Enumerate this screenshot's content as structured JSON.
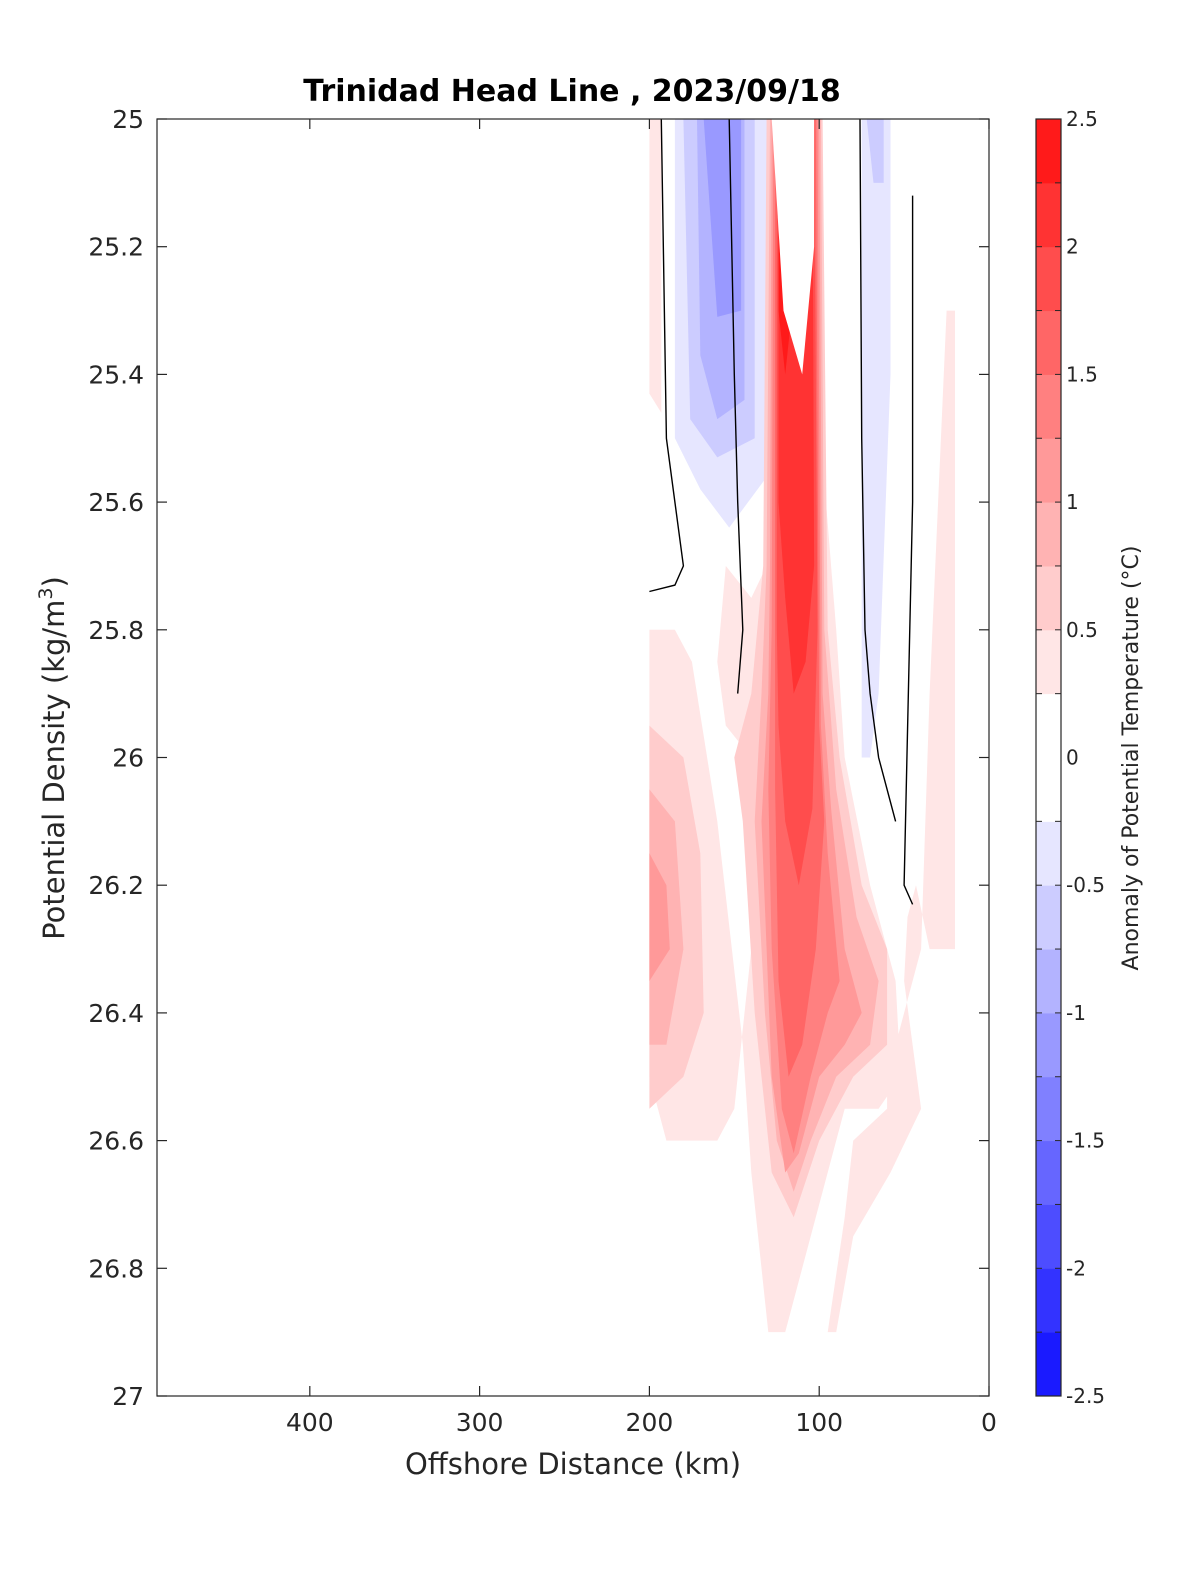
{
  "chart_data": {
    "type": "heatmap",
    "subtype": "filled-contour",
    "title": "Trinidad Head Line , 2023/09/18",
    "xlabel": "Offshore Distance (km)",
    "ylabel": "Potential Density (kg/m",
    "ylabel_sup": "3",
    "ylabel_close": ")",
    "colorbar_label": "Anomaly of Potential Temperature (°C)",
    "xlim": [
      490,
      0
    ],
    "x_reversed": true,
    "ylim": [
      25,
      27
    ],
    "y_reversed": true,
    "x_ticks": [
      400,
      300,
      200,
      100,
      0
    ],
    "x_tick_labels": [
      "400",
      "300",
      "200",
      "100",
      "0"
    ],
    "y_ticks": [
      25,
      25.2,
      25.4,
      25.6,
      25.8,
      26,
      26.2,
      26.4,
      26.6,
      26.8,
      27
    ],
    "y_tick_labels": [
      "25",
      "25.2",
      "25.4",
      "25.6",
      "25.8",
      "26",
      "26.2",
      "26.4",
      "26.6",
      "26.8",
      "27"
    ],
    "colorbar_ticks": [
      2.5,
      2,
      1.5,
      1,
      0.5,
      0,
      -0.5,
      -1,
      -1.5,
      -2,
      -2.5
    ],
    "colorbar_tick_labels": [
      "2.5",
      "2",
      "1.5",
      "1",
      "0.5",
      "0",
      "-0.5",
      "-1",
      "-1.5",
      "-2",
      "-2.5"
    ],
    "colorbar_levels": [
      -2.5,
      -2.25,
      -2,
      -1.75,
      -1.5,
      -1.25,
      -1,
      -0.75,
      -0.5,
      -0.25,
      0.25,
      0.5,
      0.75,
      1,
      1.25,
      1.5,
      1.75,
      2,
      2.25,
      2.5
    ],
    "colorbar_colors": [
      "#0000ff",
      "#1a1aff",
      "#3333ff",
      "#4d4dff",
      "#6666ff",
      "#8080ff",
      "#9999ff",
      "#b3b3ff",
      "#ccccff",
      "#e6e6ff",
      "#ffffff",
      "#ffe6e6",
      "#ffcccc",
      "#ffb3b3",
      "#ff9999",
      "#ff8080",
      "#ff6666",
      "#ff4d4d",
      "#ff3333",
      "#ff1a1a",
      "#ff0000"
    ],
    "data_extent_x": [
      200,
      20
    ],
    "data_extent_y": [
      25,
      26.9
    ],
    "anomaly_regions": [
      {
        "value": 0.375,
        "poly": [
          [
            200,
            25
          ],
          [
            193,
            25
          ],
          [
            193,
            25.46
          ],
          [
            200,
            25.43
          ]
        ]
      },
      {
        "value": -0.375,
        "poly": [
          [
            185,
            25
          ],
          [
            128,
            25
          ],
          [
            128,
            25.55
          ],
          [
            153,
            25.64
          ],
          [
            170,
            25.58
          ],
          [
            185,
            25.5
          ]
        ]
      },
      {
        "value": -0.625,
        "poly": [
          [
            180,
            25
          ],
          [
            138,
            25
          ],
          [
            138,
            25.5
          ],
          [
            160,
            25.53
          ],
          [
            176,
            25.47
          ]
        ]
      },
      {
        "value": -0.875,
        "poly": [
          [
            172,
            25
          ],
          [
            144,
            25
          ],
          [
            144,
            25.44
          ],
          [
            160,
            25.47
          ],
          [
            170,
            25.37
          ]
        ]
      },
      {
        "value": -1.125,
        "poly": [
          [
            168,
            25
          ],
          [
            146,
            25
          ],
          [
            146,
            25.3
          ],
          [
            160,
            25.31
          ]
        ]
      },
      {
        "value": -0.375,
        "poly": [
          [
            75,
            25
          ],
          [
            58,
            25
          ],
          [
            58,
            25.4
          ],
          [
            65,
            25.9
          ],
          [
            70,
            26.0
          ],
          [
            75,
            26.0
          ]
        ]
      },
      {
        "value": -0.625,
        "poly": [
          [
            72,
            25
          ],
          [
            62,
            25
          ],
          [
            62,
            25.1
          ],
          [
            68,
            25.1
          ]
        ]
      },
      {
        "value": 0.375,
        "poly": [
          [
            131,
            25
          ],
          [
            100,
            25
          ],
          [
            96,
            25.6
          ],
          [
            90,
            25.8
          ],
          [
            85,
            26
          ],
          [
            70,
            26.2
          ],
          [
            55,
            26.35
          ],
          [
            52,
            26.5
          ],
          [
            65,
            26.55
          ],
          [
            85,
            26.55
          ],
          [
            110,
            26.8
          ],
          [
            120,
            26.9
          ],
          [
            95,
            26.9
          ],
          [
            85,
            26.72
          ],
          [
            80,
            26.6
          ],
          [
            60,
            26.55
          ],
          [
            60,
            26.5
          ],
          [
            40,
            26.3
          ],
          [
            35,
            25.9
          ],
          [
            25,
            25.3
          ],
          [
            20,
            25.3
          ],
          [
            20,
            26.3
          ],
          [
            35,
            26.3
          ],
          [
            43,
            26.2
          ],
          [
            48,
            26.25
          ],
          [
            50,
            26.35
          ],
          [
            40,
            26.55
          ],
          [
            58,
            26.65
          ],
          [
            80,
            26.75
          ],
          [
            90,
            26.9
          ],
          [
            130,
            26.9
          ],
          [
            140,
            26.65
          ],
          [
            145,
            26.45
          ],
          [
            160,
            26.1
          ],
          [
            175,
            25.85
          ],
          [
            185,
            25.8
          ],
          [
            200,
            25.8
          ],
          [
            200,
            26.5
          ],
          [
            190,
            26.6
          ],
          [
            160,
            26.6
          ],
          [
            150,
            26.55
          ],
          [
            140,
            26.3
          ],
          [
            140,
            26.0
          ],
          [
            155,
            25.95
          ],
          [
            160,
            25.85
          ],
          [
            155,
            25.7
          ],
          [
            140,
            25.75
          ],
          [
            131,
            25.7
          ]
        ]
      },
      {
        "value": 0.625,
        "poly": [
          [
            131,
            25
          ],
          [
            98,
            25
          ],
          [
            95,
            25.8
          ],
          [
            88,
            26
          ],
          [
            75,
            26.2
          ],
          [
            60,
            26.3
          ],
          [
            60,
            26.45
          ],
          [
            80,
            26.5
          ],
          [
            100,
            26.6
          ],
          [
            115,
            26.72
          ],
          [
            128,
            26.65
          ],
          [
            138,
            26.4
          ],
          [
            145,
            26.1
          ],
          [
            150,
            26.0
          ],
          [
            140,
            25.9
          ],
          [
            133,
            25.7
          ]
        ]
      },
      {
        "value": 0.875,
        "poly": [
          [
            129,
            25
          ],
          [
            99,
            25
          ],
          [
            97,
            25.8
          ],
          [
            90,
            26.05
          ],
          [
            78,
            26.25
          ],
          [
            65,
            26.35
          ],
          [
            70,
            26.45
          ],
          [
            90,
            26.5
          ],
          [
            105,
            26.6
          ],
          [
            115,
            26.68
          ],
          [
            125,
            26.6
          ],
          [
            132,
            26.4
          ],
          [
            138,
            26.1
          ],
          [
            134,
            25.9
          ],
          [
            131,
            25.7
          ]
        ]
      },
      {
        "value": 1.125,
        "poly": [
          [
            128,
            25
          ],
          [
            100,
            25
          ],
          [
            98,
            25.9
          ],
          [
            93,
            26.08
          ],
          [
            85,
            26.3
          ],
          [
            75,
            26.4
          ],
          [
            85,
            26.45
          ],
          [
            100,
            26.5
          ],
          [
            112,
            26.62
          ],
          [
            120,
            26.65
          ],
          [
            128,
            26.5
          ],
          [
            131,
            26.3
          ],
          [
            134,
            26.1
          ],
          [
            130,
            25.9
          ],
          [
            129,
            25.7
          ]
        ]
      },
      {
        "value": 0.625,
        "poly": [
          [
            200,
            25.95
          ],
          [
            180,
            26.0
          ],
          [
            170,
            26.15
          ],
          [
            168,
            26.4
          ],
          [
            180,
            26.5
          ],
          [
            200,
            26.55
          ]
        ]
      },
      {
        "value": 0.875,
        "poly": [
          [
            200,
            26.05
          ],
          [
            185,
            26.1
          ],
          [
            180,
            26.3
          ],
          [
            190,
            26.45
          ],
          [
            200,
            26.45
          ]
        ]
      },
      {
        "value": 1.125,
        "poly": [
          [
            200,
            26.15
          ],
          [
            190,
            26.2
          ],
          [
            188,
            26.3
          ],
          [
            200,
            26.35
          ]
        ]
      },
      {
        "value": 1.375,
        "poly": [
          [
            127,
            25
          ],
          [
            101,
            25
          ],
          [
            99,
            25.95
          ],
          [
            95,
            26.15
          ],
          [
            88,
            26.35
          ],
          [
            95,
            26.4
          ],
          [
            105,
            26.5
          ],
          [
            115,
            26.62
          ],
          [
            122,
            26.55
          ],
          [
            128,
            26.3
          ],
          [
            130,
            26.05
          ],
          [
            128,
            25.8
          ]
        ]
      },
      {
        "value": 1.625,
        "poly": [
          [
            126,
            25
          ],
          [
            102,
            25
          ],
          [
            100,
            25.95
          ],
          [
            97,
            26.1
          ],
          [
            102,
            26.3
          ],
          [
            110,
            26.45
          ],
          [
            118,
            26.5
          ],
          [
            124,
            26.35
          ],
          [
            126,
            26.05
          ],
          [
            126,
            25.8
          ]
        ]
      },
      {
        "value": 1.875,
        "poly": [
          [
            125,
            25
          ],
          [
            103,
            25
          ],
          [
            101,
            25.8
          ],
          [
            104,
            26.08
          ],
          [
            112,
            26.2
          ],
          [
            120,
            26.1
          ],
          [
            124,
            25.95
          ],
          [
            125,
            25.8
          ]
        ]
      },
      {
        "value": 2.125,
        "poly": [
          [
            124,
            25
          ],
          [
            104,
            25
          ],
          [
            103,
            25.7
          ],
          [
            108,
            25.85
          ],
          [
            115,
            25.9
          ],
          [
            120,
            25.75
          ],
          [
            124,
            25.6
          ]
        ]
      },
      {
        "value": 2.375,
        "poly": [
          [
            124,
            25
          ],
          [
            114,
            25
          ],
          [
            114,
            25.25
          ],
          [
            120,
            25.4
          ],
          [
            124,
            25.3
          ]
        ]
      },
      {
        "value": 0,
        "poly": [
          [
            128,
            25
          ],
          [
            103,
            25
          ],
          [
            103,
            25.2
          ],
          [
            110,
            25.4
          ],
          [
            121,
            25.3
          ]
        ]
      }
    ],
    "zero_contours": [
      [
        [
          193,
          25
        ],
        [
          190,
          25.5
        ],
        [
          180,
          25.7
        ],
        [
          185,
          25.73
        ],
        [
          200,
          25.74
        ]
      ],
      [
        [
          153,
          25
        ],
        [
          150,
          25.4
        ],
        [
          148,
          25.6
        ],
        [
          145,
          25.8
        ],
        [
          148,
          25.9
        ]
      ],
      [
        [
          76,
          25
        ],
        [
          75,
          25.5
        ],
        [
          73,
          25.8
        ],
        [
          70,
          25.9
        ],
        [
          65,
          26.0
        ],
        [
          55,
          26.1
        ]
      ],
      [
        [
          45,
          25.12
        ],
        [
          45,
          25.6
        ],
        [
          50,
          26.2
        ],
        [
          45,
          26.23
        ]
      ]
    ]
  }
}
